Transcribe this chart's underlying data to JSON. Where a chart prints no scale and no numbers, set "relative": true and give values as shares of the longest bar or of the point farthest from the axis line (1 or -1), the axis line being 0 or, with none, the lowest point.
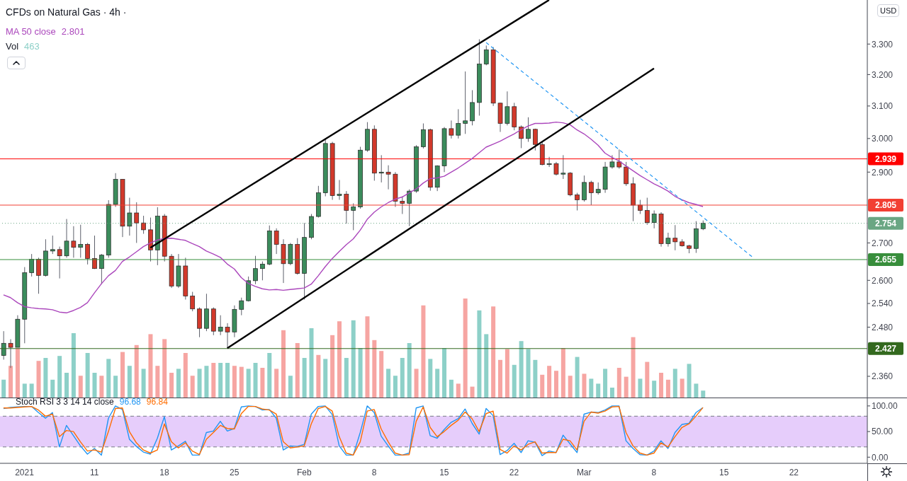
{
  "chart_data": [
    {
      "type": "candlestick",
      "title": "CFDs on Natural Gas · 4h ·",
      "ylabel": "USD",
      "log": true,
      "legend": "top left",
      "tick_labels": "y",
      "categories": [
        null,
        null,
        null,
        null,
        null,
        null,
        null,
        null,
        null,
        null,
        null,
        null,
        null,
        null,
        null,
        null,
        null,
        null,
        null,
        null,
        null,
        null,
        null,
        null,
        null,
        null,
        null,
        null,
        null,
        null,
        null,
        null,
        null,
        null,
        null,
        null,
        null,
        null,
        null,
        null,
        null,
        null,
        null,
        null,
        null,
        null,
        null,
        null,
        null,
        null,
        null,
        null,
        null,
        null,
        null,
        null,
        null,
        null,
        null,
        null,
        null,
        null,
        null,
        null,
        null,
        null,
        null,
        null,
        null,
        null,
        null,
        null,
        null,
        null,
        null,
        null,
        null,
        null,
        null,
        null,
        null,
        null,
        null,
        null,
        null,
        null,
        null,
        null,
        null,
        null,
        null,
        null,
        null,
        null,
        null,
        null,
        null,
        null,
        null,
        null,
        null,
        null,
        null,
        null,
        null,
        null,
        null,
        null,
        null,
        null,
        null,
        null,
        null,
        null,
        null,
        null,
        null,
        null,
        null,
        null,
        null,
        null,
        null,
        null
      ],
      "ohlc": [
        [
          2.41,
          2.47,
          2.4,
          2.44
        ],
        [
          2.44,
          2.45,
          2.38,
          2.43
        ],
        [
          2.43,
          2.51,
          2.43,
          2.5
        ],
        [
          2.5,
          2.635,
          2.44,
          2.62
        ],
        [
          2.62,
          2.67,
          2.61,
          2.656
        ],
        [
          2.656,
          2.66,
          2.565,
          2.613
        ],
        [
          2.613,
          2.71,
          2.61,
          2.678
        ],
        [
          2.678,
          2.72,
          2.67,
          2.682
        ],
        [
          2.682,
          2.69,
          2.605,
          2.665
        ],
        [
          2.665,
          2.766,
          2.66,
          2.705
        ],
        [
          2.705,
          2.746,
          2.66,
          2.688
        ],
        [
          2.688,
          2.75,
          2.66,
          2.696
        ],
        [
          2.696,
          2.7,
          2.642,
          2.658
        ],
        [
          2.658,
          2.72,
          2.63,
          2.631
        ],
        [
          2.631,
          2.67,
          2.59,
          2.667
        ],
        [
          2.667,
          2.819,
          2.66,
          2.807
        ],
        [
          2.807,
          2.897,
          2.8,
          2.879
        ],
        [
          2.879,
          2.88,
          2.716,
          2.746
        ],
        [
          2.746,
          2.826,
          2.72,
          2.783
        ],
        [
          2.783,
          2.813,
          2.7,
          2.755
        ],
        [
          2.755,
          2.775,
          2.725,
          2.736
        ],
        [
          2.736,
          2.77,
          2.65,
          2.681
        ],
        [
          2.681,
          2.799,
          2.64,
          2.774
        ],
        [
          2.774,
          2.78,
          2.65,
          2.664
        ],
        [
          2.664,
          2.67,
          2.58,
          2.585
        ],
        [
          2.585,
          2.67,
          2.58,
          2.638
        ],
        [
          2.638,
          2.66,
          2.55,
          2.559
        ],
        [
          2.559,
          2.57,
          2.52,
          2.526
        ],
        [
          2.526,
          2.53,
          2.455,
          2.477
        ],
        [
          2.477,
          2.565,
          2.47,
          2.526
        ],
        [
          2.526,
          2.53,
          2.46,
          2.47
        ],
        [
          2.47,
          2.51,
          2.46,
          2.48
        ],
        [
          2.48,
          2.49,
          2.428,
          2.468
        ],
        [
          2.468,
          2.535,
          2.455,
          2.525
        ],
        [
          2.525,
          2.555,
          2.51,
          2.547
        ],
        [
          2.547,
          2.61,
          2.545,
          2.599
        ],
        [
          2.599,
          2.665,
          2.59,
          2.631
        ],
        [
          2.631,
          2.65,
          2.6,
          2.643
        ],
        [
          2.643,
          2.748,
          2.64,
          2.733
        ],
        [
          2.733,
          2.74,
          2.67,
          2.696
        ],
        [
          2.696,
          2.71,
          2.593,
          2.644
        ],
        [
          2.644,
          2.7,
          2.64,
          2.696
        ],
        [
          2.696,
          2.713,
          2.615,
          2.618
        ],
        [
          2.618,
          2.755,
          2.55,
          2.715
        ],
        [
          2.715,
          2.78,
          2.71,
          2.773
        ],
        [
          2.773,
          2.86,
          2.77,
          2.84
        ],
        [
          2.84,
          3,
          2.83,
          2.985
        ],
        [
          2.985,
          2.99,
          2.82,
          2.832
        ],
        [
          2.832,
          2.877,
          2.82,
          2.836
        ],
        [
          2.836,
          2.845,
          2.753,
          2.79
        ],
        [
          2.79,
          2.81,
          2.735,
          2.8
        ],
        [
          2.8,
          2.975,
          2.795,
          2.965
        ],
        [
          2.965,
          3.05,
          2.96,
          3.028
        ],
        [
          3.028,
          3.04,
          2.875,
          2.897
        ],
        [
          2.897,
          2.95,
          2.87,
          2.9
        ],
        [
          2.9,
          2.92,
          2.85,
          2.894
        ],
        [
          2.894,
          2.9,
          2.8,
          2.816
        ],
        [
          2.816,
          2.83,
          2.78,
          2.81
        ],
        [
          2.81,
          2.85,
          2.746,
          2.845
        ],
        [
          2.845,
          2.98,
          2.84,
          2.975
        ],
        [
          2.975,
          3.046,
          2.97,
          3.027
        ],
        [
          3.027,
          3.03,
          2.846,
          2.856
        ],
        [
          2.856,
          2.92,
          2.845,
          2.918
        ],
        [
          2.918,
          3.035,
          2.9,
          3.03
        ],
        [
          3.03,
          3.055,
          3,
          3.01
        ],
        [
          3.01,
          3.09,
          3,
          3.046
        ],
        [
          3.046,
          3.21,
          3.014,
          3.054
        ],
        [
          3.054,
          3.15,
          3.04,
          3.111
        ],
        [
          3.111,
          3.316,
          3.07,
          3.234
        ],
        [
          3.234,
          3.295,
          3.23,
          3.281
        ],
        [
          3.281,
          3.29,
          3.1,
          3.109
        ],
        [
          3.109,
          3.11,
          3.02,
          3.046
        ],
        [
          3.046,
          3.146,
          3.04,
          3.098
        ],
        [
          3.098,
          3.11,
          3.025,
          3.035
        ],
        [
          3.035,
          3.04,
          2.971,
          3
        ],
        [
          3,
          3.065,
          2.99,
          3.028
        ],
        [
          3.028,
          3.03,
          2.964,
          2.982
        ],
        [
          2.982,
          2.99,
          2.92,
          2.922
        ],
        [
          2.922,
          2.945,
          2.915,
          2.925
        ],
        [
          2.925,
          2.93,
          2.89,
          2.894
        ],
        [
          2.894,
          2.95,
          2.88,
          2.897
        ],
        [
          2.897,
          2.9,
          2.83,
          2.834
        ],
        [
          2.834,
          2.84,
          2.79,
          2.82
        ],
        [
          2.82,
          2.89,
          2.815,
          2.87
        ],
        [
          2.87,
          2.875,
          2.805,
          2.84
        ],
        [
          2.84,
          2.87,
          2.835,
          2.85
        ],
        [
          2.85,
          2.93,
          2.84,
          2.915
        ],
        [
          2.915,
          2.95,
          2.91,
          2.93
        ],
        [
          2.93,
          2.967,
          2.91,
          2.915
        ],
        [
          2.915,
          2.93,
          2.86,
          2.866
        ],
        [
          2.866,
          2.885,
          2.76,
          2.805
        ],
        [
          2.805,
          2.82,
          2.78,
          2.79
        ],
        [
          2.79,
          2.826,
          2.75,
          2.756
        ],
        [
          2.756,
          2.79,
          2.74,
          2.78
        ],
        [
          2.78,
          2.785,
          2.69,
          2.698
        ],
        [
          2.698,
          2.728,
          2.69,
          2.713
        ],
        [
          2.713,
          2.749,
          2.68,
          2.703
        ],
        [
          2.703,
          2.71,
          2.69,
          2.692
        ],
        [
          2.692,
          2.695,
          2.672,
          2.685
        ],
        [
          2.685,
          2.76,
          2.673,
          2.739
        ],
        [
          2.739,
          2.762,
          2.735,
          2.754
        ],
        null,
        null,
        null,
        null,
        null,
        null,
        null,
        null,
        null,
        null,
        null,
        null,
        null,
        null,
        null,
        null,
        null,
        null,
        null,
        null,
        null,
        null,
        null
      ],
      "colors": [
        "#3b8c5c",
        "#d2392b",
        "#3b8c5c",
        "#3b8c5c",
        "#3b8c5c",
        "#d2392b",
        "#3b8c5c",
        "#3b8c5c",
        "#d2392b",
        "#3b8c5c",
        "#d2392b",
        "#3b8c5c",
        "#d2392b",
        "#d2392b",
        "#3b8c5c",
        "#3b8c5c",
        "#3b8c5c",
        "#d2392b",
        "#3b8c5c",
        "#d2392b",
        "#d2392b",
        "#d2392b",
        "#3b8c5c",
        "#d2392b",
        "#d2392b",
        "#3b8c5c",
        "#d2392b",
        "#d2392b",
        "#d2392b",
        "#3b8c5c",
        "#d2392b",
        "#3b8c5c",
        "#d2392b",
        "#3b8c5c",
        "#3b8c5c",
        "#3b8c5c",
        "#3b8c5c",
        "#3b8c5c",
        "#3b8c5c",
        "#d2392b",
        "#d2392b",
        "#3b8c5c",
        "#d2392b",
        "#3b8c5c",
        "#3b8c5c",
        "#3b8c5c",
        "#3b8c5c",
        "#d2392b",
        "#3b8c5c",
        "#d2392b",
        "#3b8c5c",
        "#3b8c5c",
        "#3b8c5c",
        "#d2392b",
        "#3b8c5c",
        "#d2392b",
        "#d2392b",
        "#d2392b",
        "#3b8c5c",
        "#3b8c5c",
        "#3b8c5c",
        "#d2392b",
        "#3b8c5c",
        "#3b8c5c",
        "#d2392b",
        "#3b8c5c",
        "#3b8c5c",
        "#3b8c5c",
        "#3b8c5c",
        "#3b8c5c",
        "#d2392b",
        "#d2392b",
        "#3b8c5c",
        "#d2392b",
        "#d2392b",
        "#3b8c5c",
        "#d2392b",
        "#d2392b",
        "#3b8c5c",
        "#d2392b",
        "#3b8c5c",
        "#d2392b",
        "#d2392b",
        "#3b8c5c",
        "#d2392b",
        "#3b8c5c",
        "#3b8c5c",
        "#3b8c5c",
        "#d2392b",
        "#d2392b",
        "#d2392b",
        "#d2392b",
        "#d2392b",
        "#3b8c5c",
        "#d2392b",
        "#3b8c5c",
        "#d2392b",
        "#d2392b",
        "#d2392b",
        "#3b8c5c",
        "#3b8c5c",
        null,
        null,
        null,
        null,
        null,
        null,
        null,
        null,
        null,
        null,
        null,
        null,
        null,
        null,
        null,
        null,
        null,
        null,
        null,
        null,
        null,
        null,
        null
      ],
      "series": [
        {
          "type": "line",
          "name": "MA 50 close",
          "color": "#ab47bc",
          "values": [
            2.562,
            2.555,
            2.542,
            2.532,
            2.529,
            2.527,
            2.526,
            2.524,
            2.518,
            2.516,
            2.522,
            2.53,
            2.542,
            2.567,
            2.591,
            2.612,
            2.626,
            2.65,
            2.662,
            2.676,
            2.69,
            2.7,
            2.708,
            2.712,
            2.713,
            2.71,
            2.707,
            2.698,
            2.69,
            2.678,
            2.67,
            2.661,
            2.643,
            2.63,
            2.607,
            2.592,
            2.584,
            2.578,
            2.575,
            2.576,
            2.574,
            2.576,
            2.578,
            2.58,
            2.59,
            2.612,
            2.636,
            2.658,
            2.677,
            2.695,
            2.711,
            2.735,
            2.765,
            2.785,
            2.8,
            2.812,
            2.822,
            2.828,
            2.84,
            2.851,
            2.868,
            2.881,
            2.883,
            2.888,
            2.9,
            2.912,
            2.926,
            2.94,
            2.957,
            2.974,
            2.983,
            2.992,
            3.003,
            3.014,
            3.027,
            3.038,
            3.046,
            3.046,
            3.047,
            3.05,
            3.048,
            3.042,
            3.026,
            3.014,
            2.998,
            2.98,
            2.956,
            2.943,
            2.933,
            2.918,
            2.904,
            2.89,
            2.878,
            2.866,
            2.856,
            2.845,
            2.83,
            2.82,
            2.812,
            2.807,
            2.801,
            null,
            null,
            null,
            null,
            null,
            null,
            null,
            null,
            null,
            null,
            null,
            null,
            null,
            null,
            null,
            null,
            null,
            null,
            null,
            null,
            null,
            null,
            null
          ]
        },
        {
          "type": "line",
          "color": "#000000",
          "values": [
            null,
            null,
            null,
            null,
            null,
            null,
            null,
            null,
            null,
            null,
            null,
            null,
            null,
            null,
            null,
            null,
            null,
            null,
            null,
            null,
            null,
            2.687,
            null,
            null,
            null,
            null,
            null,
            null,
            null,
            null,
            null,
            null,
            null,
            null,
            null,
            null,
            null,
            null,
            null,
            null,
            null,
            null,
            null,
            null,
            null,
            null,
            null,
            null,
            null,
            null,
            null,
            null,
            null,
            null,
            null,
            null,
            null,
            null,
            null,
            null,
            null,
            null,
            null,
            null,
            null,
            null,
            null,
            null,
            null,
            null,
            null,
            null,
            null,
            null,
            null,
            null,
            null,
            null,
            3.45,
            null,
            null,
            null,
            null,
            null,
            null,
            null,
            null,
            null,
            null,
            null,
            null,
            null,
            null,
            null,
            null,
            null,
            null,
            null,
            null,
            null,
            null,
            null,
            null,
            null,
            null,
            null,
            null,
            null,
            null,
            null,
            null,
            null,
            null,
            null,
            null,
            null,
            null,
            null,
            null,
            null,
            null,
            null,
            null,
            null
          ]
        },
        {
          "type": "line",
          "color": "#000000",
          "values": [
            null,
            null,
            null,
            null,
            null,
            null,
            null,
            null,
            null,
            null,
            null,
            null,
            null,
            null,
            null,
            null,
            null,
            null,
            null,
            null,
            null,
            null,
            null,
            null,
            null,
            null,
            null,
            null,
            null,
            null,
            null,
            null,
            2.428,
            null,
            null,
            null,
            null,
            null,
            null,
            null,
            null,
            null,
            null,
            null,
            null,
            null,
            null,
            null,
            null,
            null,
            null,
            null,
            null,
            null,
            null,
            null,
            null,
            null,
            null,
            null,
            null,
            null,
            null,
            null,
            null,
            null,
            null,
            null,
            null,
            null,
            null,
            null,
            null,
            null,
            null,
            null,
            null,
            null,
            null,
            null,
            null,
            null,
            null,
            null,
            null,
            null,
            null,
            null,
            null,
            null,
            null,
            null,
            null,
            3.22,
            null,
            null,
            null,
            null,
            null,
            null,
            null,
            null,
            null,
            null,
            null,
            null,
            null,
            null,
            null,
            null,
            null,
            null,
            null,
            null,
            null,
            null,
            null,
            null,
            null,
            null,
            null,
            null,
            null,
            null
          ]
        },
        {
          "type": "line",
          "color": "#2196f3",
          "line_style": "dashed",
          "values": [
            null,
            null,
            null,
            null,
            null,
            null,
            null,
            null,
            null,
            null,
            null,
            null,
            null,
            null,
            null,
            null,
            null,
            null,
            null,
            null,
            null,
            null,
            null,
            null,
            null,
            null,
            null,
            null,
            null,
            null,
            null,
            null,
            null,
            null,
            null,
            null,
            null,
            null,
            null,
            null,
            null,
            null,
            null,
            null,
            null,
            null,
            null,
            null,
            null,
            null,
            null,
            null,
            null,
            null,
            null,
            null,
            null,
            null,
            null,
            null,
            null,
            null,
            null,
            null,
            null,
            null,
            null,
            null,
            null,
            3.305,
            null,
            null,
            null,
            null,
            null,
            null,
            null,
            null,
            null,
            null,
            null,
            null,
            null,
            null,
            null,
            null,
            null,
            null,
            null,
            null,
            null,
            null,
            null,
            null,
            null,
            null,
            null,
            null,
            null,
            null,
            null,
            null,
            null,
            null,
            null,
            null,
            null,
            2.663,
            null,
            null,
            null,
            null,
            null,
            null,
            null,
            null,
            null,
            null,
            null,
            null,
            null,
            null,
            null,
            null
          ]
        }
      ],
      "ylim": [
        2.31,
        3.45
      ],
      "yticks": [
        {
          "value": 2.36,
          "label": "2.360"
        },
        {
          "value": 2.48,
          "label": "2.480"
        },
        {
          "value": 2.54,
          "label": "2.540"
        },
        {
          "value": 2.6,
          "label": "2.600"
        },
        {
          "value": 2.7,
          "label": "2.700"
        },
        {
          "value": 2.9,
          "label": "2.900"
        },
        {
          "value": 3,
          "label": "3.000"
        },
        {
          "value": 3.1,
          "label": "3.100"
        },
        {
          "value": 3.2,
          "label": "3.200"
        },
        {
          "value": 3.3,
          "label": "3.300"
        }
      ],
      "ref_lines": [
        {
          "axis": "y",
          "value": 2.939,
          "label": "2.939",
          "color": "#ff0000"
        },
        {
          "axis": "y",
          "value": 2.805,
          "label": "2.805",
          "color": "#f23f33"
        },
        {
          "axis": "y",
          "value": 2.754,
          "label": "2.754",
          "color": "#6aa683",
          "line_style": "dotted"
        },
        {
          "axis": "y",
          "value": 2.655,
          "label": "2.655",
          "color": "#388e3c"
        },
        {
          "axis": "y",
          "value": 2.427,
          "label": "2.427",
          "color": "#33691e"
        }
      ],
      "annotations": [
        "2.801"
      ]
    },
    {
      "type": "bar",
      "title": "Vol",
      "relative": true,
      "tick_labels": false,
      "categories": [
        null,
        null,
        null,
        null,
        null,
        null,
        null,
        null,
        null,
        null,
        null,
        null,
        null,
        null,
        null,
        null,
        null,
        null,
        null,
        null,
        null,
        null,
        null,
        null,
        null,
        null,
        null,
        null,
        null,
        null,
        null,
        null,
        null,
        null,
        null,
        null,
        null,
        null,
        null,
        null,
        null,
        null,
        null,
        null,
        null,
        null,
        null,
        null,
        null,
        null,
        null,
        null,
        null,
        null,
        null,
        null,
        null,
        null,
        null,
        null,
        null,
        null,
        null,
        null,
        null,
        null,
        null,
        null,
        null,
        null,
        null,
        null,
        null,
        null,
        null,
        null,
        null,
        null,
        null,
        null,
        null,
        null,
        null,
        null,
        null,
        null,
        null,
        null,
        null,
        null,
        null,
        null,
        null,
        null,
        null,
        null,
        null,
        null,
        null,
        null,
        null,
        null,
        null,
        null,
        null,
        null,
        null,
        null,
        null,
        null,
        null,
        null,
        null,
        null,
        null,
        null,
        null,
        null,
        null,
        null,
        null,
        null,
        null,
        null
      ],
      "values": [
        0.18,
        0.32,
        0.5,
        0.14,
        0.14,
        0.37,
        0.4,
        0.18,
        0.42,
        0.25,
        0.65,
        0.22,
        0.45,
        0.25,
        0.22,
        0.39,
        0.22,
        0.46,
        0.32,
        0.53,
        0.29,
        0.64,
        0.32,
        0.59,
        0.25,
        0.29,
        0.45,
        0.22,
        0.29,
        0.32,
        0.35,
        0.35,
        0.35,
        0.32,
        0.31,
        0.29,
        0.35,
        0.3,
        0.45,
        0.29,
        0.68,
        0.22,
        0.55,
        0.4,
        0.7,
        0.43,
        0.39,
        0.63,
        0.77,
        0.4,
        0.78,
        0.5,
        0.82,
        0.58,
        0.47,
        0.29,
        0.22,
        0.4,
        0.55,
        0.29,
        0.93,
        0.39,
        0.29,
        0.5,
        0.18,
        0.14,
        1,
        0.11,
        0.88,
        0.64,
        0.92,
        0.38,
        0.49,
        0.33,
        0.57,
        0.49,
        0.38,
        0.23,
        0.32,
        0.27,
        0.5,
        0.22,
        0.41,
        0.24,
        0.19,
        0.14,
        0.29,
        0.1,
        0.3,
        0.21,
        0.61,
        0.19,
        0.36,
        0.17,
        0.25,
        0.18,
        0.29,
        0.19,
        0.34,
        0.14,
        0.07,
        null,
        null,
        null,
        null,
        null,
        null,
        null,
        null,
        null,
        null,
        null,
        null,
        null,
        null,
        null,
        null,
        null,
        null,
        null,
        null,
        null,
        null,
        null
      ],
      "colors": [
        "#8dd0c8",
        "#f6a5a2",
        "#f6a5a2",
        "#8dd0c8",
        "#8dd0c8",
        "#f6a5a2",
        "#8dd0c8",
        "#8dd0c8",
        "#8dd0c8",
        "#8dd0c8",
        "#8dd0c8",
        "#f6a5a2",
        "#8dd0c8",
        "#8dd0c8",
        "#f6a5a2",
        "#8dd0c8",
        "#8dd0c8",
        "#f6a5a2",
        "#8dd0c8",
        "#f6a5a2",
        "#8dd0c8",
        "#f6a5a2",
        "#f6a5a2",
        "#f6a5a2",
        "#f6a5a2",
        "#8dd0c8",
        "#f6a5a2",
        "#f6a5a2",
        "#8dd0c8",
        "#8dd0c8",
        "#f6a5a2",
        "#8dd0c8",
        "#8dd0c8",
        "#f6a5a2",
        "#f6a5a2",
        "#8dd0c8",
        "#8dd0c8",
        "#f6a5a2",
        "#8dd0c8",
        "#f6a5a2",
        "#f6a5a2",
        "#8dd0c8",
        "#f6a5a2",
        "#8dd0c8",
        "#8dd0c8",
        "#f6a5a2",
        "#8dd0c8",
        "#f6a5a2",
        "#f6a5a2",
        "#8dd0c8",
        "#8dd0c8",
        "#8dd0c8",
        "#f6a5a2",
        "#f6a5a2",
        "#f6a5a2",
        "#8dd0c8",
        "#8dd0c8",
        "#8dd0c8",
        "#8dd0c8",
        "#f6a5a2",
        "#f6a5a2",
        "#8dd0c8",
        "#8dd0c8",
        "#8dd0c8",
        "#8dd0c8",
        "#f6a5a2",
        "#f6a5a2",
        "#f6a5a2",
        "#8dd0c8",
        "#8dd0c8",
        "#f6a5a2",
        "#f6a5a2",
        "#f6a5a2",
        "#8dd0c8",
        "#8dd0c8",
        "#8dd0c8",
        "#8dd0c8",
        "#f6a5a2",
        "#f6a5a2",
        "#f6a5a2",
        "#f6a5a2",
        "#f6a5a2",
        "#8dd0c8",
        "#f6a5a2",
        "#8dd0c8",
        "#8dd0c8",
        "#8dd0c8",
        "#8dd0c8",
        "#f6a5a2",
        "#f6a5a2",
        "#f6a5a2",
        "#8dd0c8",
        "#f6a5a2",
        "#8dd0c8",
        "#f6a5a2",
        "#f6a5a2",
        "#8dd0c8",
        "#f6a5a2",
        "#8dd0c8",
        "#8dd0c8",
        "#8dd0c8",
        null,
        null,
        null,
        null,
        null,
        null,
        null,
        null,
        null,
        null,
        null,
        null,
        null,
        null,
        null,
        null,
        null,
        null,
        null,
        null,
        null,
        null,
        null
      ],
      "annotations": [
        "463"
      ]
    },
    {
      "type": "line",
      "title": "Stoch RSI 3 3 14 14 close",
      "categories": [
        null,
        null,
        null,
        "2021",
        null,
        null,
        null,
        null,
        null,
        null,
        null,
        null,
        null,
        "11",
        null,
        null,
        null,
        null,
        null,
        null,
        null,
        null,
        null,
        "18",
        null,
        null,
        null,
        null,
        null,
        null,
        null,
        null,
        null,
        "25",
        null,
        null,
        null,
        null,
        null,
        null,
        null,
        null,
        null,
        "Feb",
        null,
        null,
        null,
        null,
        null,
        null,
        null,
        null,
        null,
        "8",
        null,
        null,
        null,
        null,
        null,
        null,
        null,
        null,
        null,
        "15",
        null,
        null,
        null,
        null,
        null,
        null,
        null,
        null,
        null,
        "22",
        null,
        null,
        null,
        null,
        null,
        null,
        null,
        null,
        null,
        "Mar",
        null,
        null,
        null,
        null,
        null,
        null,
        null,
        null,
        null,
        "8",
        null,
        null,
        null,
        null,
        null,
        null,
        null,
        null,
        null,
        "15",
        null,
        null,
        null,
        null,
        null,
        null,
        null,
        null,
        null,
        "22",
        null,
        null,
        null,
        null,
        null,
        null,
        null,
        null,
        null,
        null
      ],
      "series": [
        {
          "color": "#2196f3",
          "values": [
            95,
            97,
            98,
            99,
            99,
            87,
            76,
            87,
            20,
            62,
            42,
            22,
            6,
            17,
            4,
            76,
            100,
            93,
            35,
            21,
            10,
            6,
            37,
            79,
            14,
            22,
            31,
            4,
            4,
            48,
            51,
            70,
            51,
            56,
            98,
            100,
            99,
            92,
            93,
            76,
            14,
            22,
            21,
            25,
            84,
            99,
            100,
            83,
            22,
            4,
            4,
            48,
            100,
            87,
            41,
            22,
            4,
            4,
            8,
            96,
            100,
            42,
            37,
            54,
            68,
            75,
            94,
            66,
            45,
            95,
            81,
            5,
            13,
            27,
            9,
            32,
            29,
            3,
            12,
            9,
            43,
            26,
            9,
            84,
            88,
            87,
            92,
            100,
            100,
            32,
            17,
            5,
            4,
            12,
            32,
            17,
            48,
            64,
            66,
            87,
            96.68,
            null,
            null,
            null,
            null,
            null,
            null,
            null,
            null,
            null,
            null,
            null,
            null,
            null,
            null,
            null,
            null,
            null,
            null,
            null,
            null,
            null,
            null,
            null
          ]
        },
        {
          "color": "#ff6d00",
          "values": [
            96,
            96,
            97,
            98,
            99,
            92,
            80,
            84,
            40,
            52,
            50,
            30,
            12,
            14,
            10,
            50,
            95,
            96,
            50,
            28,
            14,
            8,
            14,
            65,
            30,
            18,
            28,
            12,
            5,
            35,
            48,
            62,
            56,
            55,
            85,
            99,
            99,
            94,
            92,
            84,
            30,
            18,
            20,
            22,
            65,
            95,
            99,
            90,
            40,
            8,
            4,
            30,
            90,
            93,
            55,
            30,
            8,
            4,
            5,
            70,
            98,
            58,
            40,
            50,
            62,
            72,
            88,
            75,
            50,
            85,
            90,
            15,
            8,
            22,
            14,
            25,
            30,
            8,
            9,
            9,
            35,
            32,
            14,
            70,
            88,
            86,
            90,
            98,
            99,
            48,
            22,
            8,
            4,
            8,
            28,
            20,
            40,
            58,
            65,
            80,
            96.84,
            null,
            null,
            null,
            null,
            null,
            null,
            null,
            null,
            null,
            null,
            null,
            null,
            null,
            null,
            null,
            null,
            null,
            null,
            null,
            null,
            null,
            null,
            null
          ]
        }
      ],
      "ylim": [
        -12,
        115
      ],
      "yticks": [
        {
          "value": 0,
          "label": "0.00"
        },
        {
          "value": 50,
          "label": "50.00"
        },
        {
          "value": 100,
          "label": "100.00"
        }
      ],
      "bands": [
        {
          "axis": "y",
          "from": 20,
          "to": 80,
          "color": "#e6cdfb"
        }
      ],
      "ref_lines": [
        {
          "axis": "y",
          "value": 80,
          "color": "#787b86",
          "line_style": "dashed"
        },
        {
          "axis": "y",
          "value": 20,
          "color": "#787b86",
          "line_style": "dashed"
        }
      ],
      "annotations": [
        "96.68",
        "96.84"
      ]
    }
  ]
}
